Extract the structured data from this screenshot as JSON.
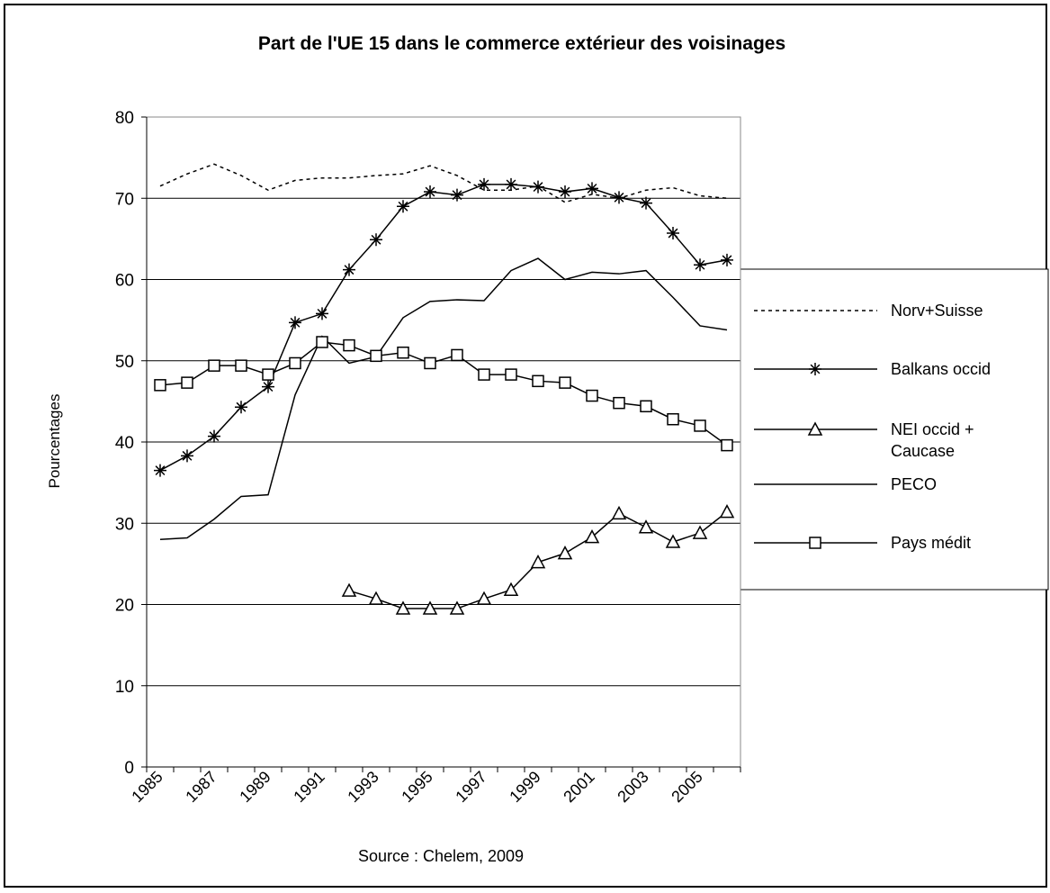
{
  "chart_data": {
    "type": "line",
    "title": "Part de l'UE 15 dans le commerce extérieur des voisinages",
    "y_label": "Pourcentages",
    "source": "Source : Chelem, 2009",
    "categories": [
      "1985",
      null,
      "1987",
      null,
      "1989",
      null,
      "1991",
      null,
      "1993",
      null,
      "1995",
      null,
      "1997",
      null,
      "1999",
      null,
      "2001",
      null,
      "2003",
      null,
      "2005",
      null
    ],
    "ylim": [
      0,
      80
    ],
    "yticks": [
      0,
      10,
      20,
      30,
      40,
      50,
      60,
      70,
      80
    ],
    "grid": true,
    "legend": "right",
    "series": [
      {
        "name": "Norv+Suisse",
        "color": "#000000",
        "dash": true,
        "marker": "none",
        "values": [
          71.5,
          73,
          74.2,
          72.8,
          71,
          72.2,
          72.5,
          72.5,
          72.8,
          73,
          74,
          72.8,
          71,
          71,
          71.5,
          69.5,
          70.5,
          70,
          71,
          71.3,
          70.3,
          70
        ]
      },
      {
        "name": "Balkans occid",
        "color": "#000000",
        "dash": false,
        "marker": "star",
        "values": [
          36.5,
          38.3,
          40.7,
          44.3,
          46.8,
          54.7,
          55.8,
          61.2,
          64.9,
          69,
          70.8,
          70.4,
          71.7,
          71.7,
          71.4,
          70.8,
          71.2,
          70.1,
          69.4,
          65.7,
          61.8,
          62.4
        ]
      },
      {
        "name": "NEI occid + Caucase",
        "color": "#000000",
        "dash": false,
        "marker": "triangle",
        "values": [
          null,
          null,
          null,
          null,
          null,
          null,
          null,
          21.7,
          20.7,
          19.5,
          19.5,
          19.5,
          20.7,
          21.8,
          25.2,
          26.3,
          28.3,
          31.2,
          29.5,
          27.7,
          28.8,
          31.4
        ]
      },
      {
        "name": "PECO",
        "color": "#000000",
        "dash": false,
        "marker": "none",
        "values": [
          28,
          28.2,
          30.5,
          33.3,
          33.5,
          45.8,
          53,
          49.7,
          50.5,
          55.3,
          57.3,
          57.5,
          57.4,
          61.1,
          62.6,
          60,
          60.9,
          60.7,
          61.1,
          57.8,
          54.3,
          53.8
        ]
      },
      {
        "name": "Pays médit",
        "color": "#000000",
        "dash": false,
        "marker": "square",
        "values": [
          47,
          47.3,
          49.4,
          49.4,
          48.3,
          49.7,
          52.3,
          51.9,
          50.6,
          51,
          49.7,
          50.7,
          48.3,
          48.3,
          47.5,
          47.3,
          45.7,
          44.8,
          44.4,
          42.8,
          42,
          39.6
        ]
      }
    ]
  }
}
